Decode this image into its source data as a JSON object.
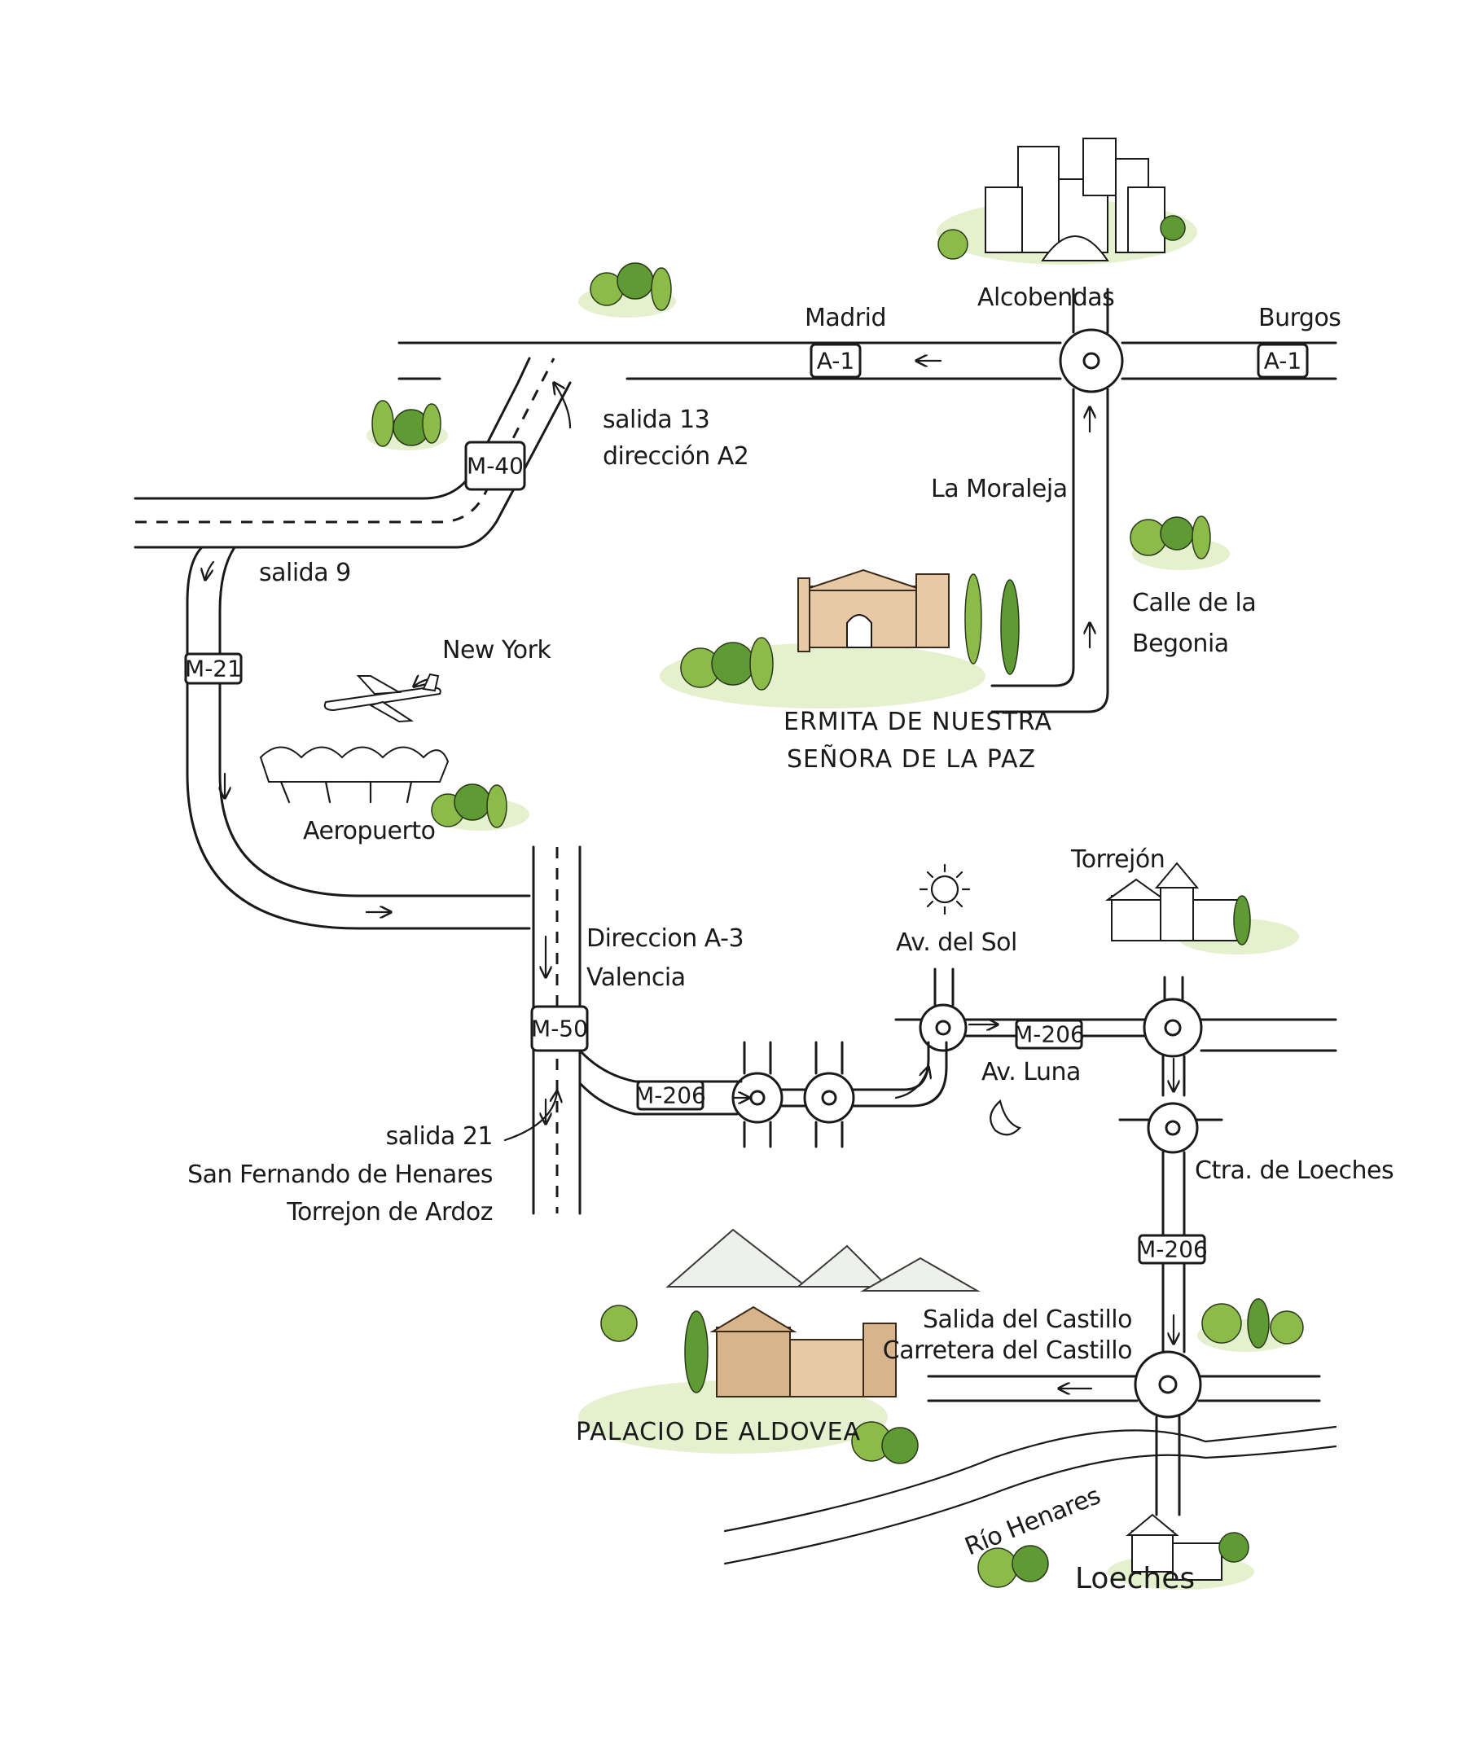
{
  "map": {
    "places": {
      "alcobendas": "Alcobendas",
      "madrid": "Madrid",
      "burgos": "Burgos",
      "la_moraleja": "La Moraleja",
      "calle_begonia_1": "Calle de la",
      "calle_begonia_2": "Begonia",
      "ermita_1": "ERMITA DE NUESTRA",
      "ermita_2": "SEÑORA DE LA PAZ",
      "new_york": "New York",
      "aeropuerto": "Aeropuerto",
      "salida_9": "salida 9",
      "salida_13_1": "salida 13",
      "salida_13_2": "dirección A2",
      "direccion_a3_1": "Direccion A-3",
      "direccion_a3_2": "Valencia",
      "torrejon": "Torrejón",
      "av_sol": "Av. del Sol",
      "av_luna": "Av. Luna",
      "salida_21_1": "salida 21",
      "salida_21_2": "San Fernando de Henares",
      "salida_21_3": "Torrejon de Ardoz",
      "ctra_loeches": "Ctra. de Loeches",
      "salida_castillo_1": "Salida del Castillo",
      "salida_castillo_2": "Carretera del Castillo",
      "palacio": "PALACIO DE ALDOVEA",
      "rio_henares": "Río Henares",
      "loeches": "Loeches"
    },
    "shields": {
      "a1_left": "A-1",
      "a1_right": "A-1",
      "m40": "M-40",
      "m21": "M-21",
      "m50": "M-50",
      "m206_a": "M-206",
      "m206_b": "M-206",
      "m206_c": "M-206"
    },
    "colors": {
      "ink": "#1a1a1a",
      "tree_light": "#8dbb4a",
      "tree_dark": "#5f9a35",
      "building_warm": "#e8c9a6"
    }
  }
}
